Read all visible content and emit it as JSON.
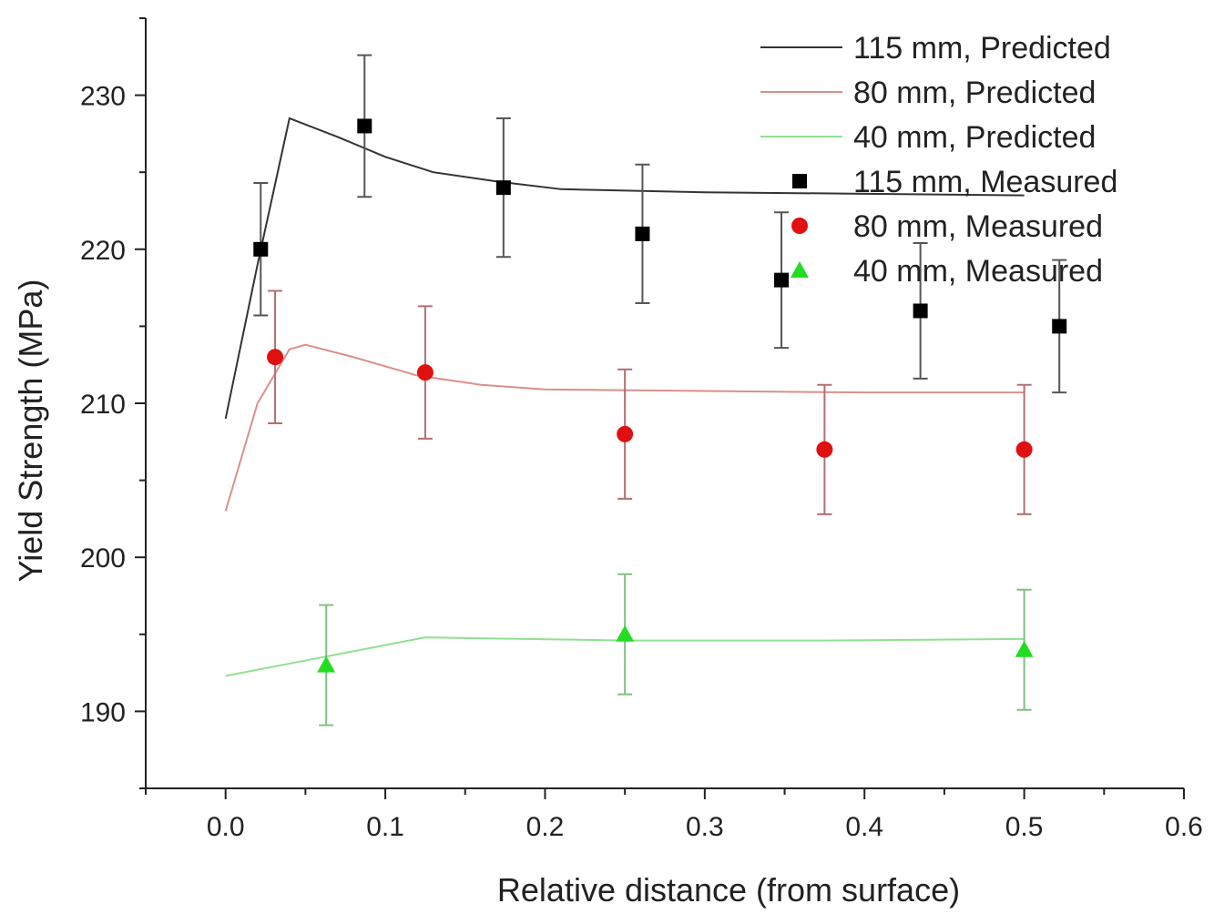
{
  "chart_data": {
    "type": "scatter",
    "title": "",
    "xlabel": "Relative distance (from surface)",
    "ylabel": "Yield Strength (MPa)",
    "xlim": [
      -0.05,
      0.6
    ],
    "ylim": [
      185,
      235
    ],
    "xticks": [
      "0.0",
      "0.1",
      "0.2",
      "0.3",
      "0.4",
      "0.5",
      "0.6"
    ],
    "yticks": [
      "190",
      "200",
      "210",
      "220",
      "230"
    ],
    "grid": false,
    "legend_position": "top-right",
    "series": [
      {
        "name": "115 mm, Predicted",
        "kind": "line",
        "color": "#333333",
        "x": [
          0.0,
          0.02,
          0.04,
          0.07,
          0.1,
          0.13,
          0.17,
          0.21,
          0.3,
          0.4,
          0.5
        ],
        "y": [
          209,
          219,
          228.5,
          227.3,
          226.0,
          225.0,
          224.4,
          223.9,
          223.7,
          223.6,
          223.5
        ]
      },
      {
        "name": "80 mm, Predicted",
        "kind": "line",
        "color": "#d9908a",
        "x": [
          0.0,
          0.02,
          0.04,
          0.05,
          0.08,
          0.12,
          0.16,
          0.2,
          0.3,
          0.4,
          0.5
        ],
        "y": [
          203,
          210,
          213.5,
          213.8,
          213.0,
          211.8,
          211.2,
          210.9,
          210.8,
          210.7,
          210.7
        ]
      },
      {
        "name": "40 mm, Predicted",
        "kind": "line",
        "color": "#90e090",
        "x": [
          0.0,
          0.06,
          0.125,
          0.25,
          0.375,
          0.5
        ],
        "y": [
          192.3,
          193.5,
          194.8,
          194.6,
          194.6,
          194.7
        ]
      },
      {
        "name": "115 mm, Measured",
        "kind": "scatter",
        "marker": "square",
        "color": "#000000",
        "error_color": "#555555",
        "x": [
          0.022,
          0.087,
          0.174,
          0.261,
          0.348,
          0.435,
          0.522
        ],
        "y": [
          220,
          228,
          224,
          221,
          218,
          216,
          215
        ],
        "err": [
          4.3,
          4.6,
          4.5,
          4.5,
          4.4,
          4.4,
          4.3
        ]
      },
      {
        "name": "80 mm, Measured",
        "kind": "scatter",
        "marker": "circle",
        "color": "#e01010",
        "error_color": "#b07070",
        "x": [
          0.031,
          0.125,
          0.25,
          0.375,
          0.5
        ],
        "y": [
          213,
          212,
          208,
          207,
          207
        ],
        "err": [
          4.3,
          4.3,
          4.2,
          4.2,
          4.2
        ]
      },
      {
        "name": "40 mm, Measured",
        "kind": "scatter",
        "marker": "triangle",
        "color": "#22dd22",
        "error_color": "#80c080",
        "x": [
          0.063,
          0.25,
          0.5
        ],
        "y": [
          193,
          195,
          194
        ],
        "err": [
          3.9,
          3.9,
          3.9
        ]
      }
    ]
  }
}
